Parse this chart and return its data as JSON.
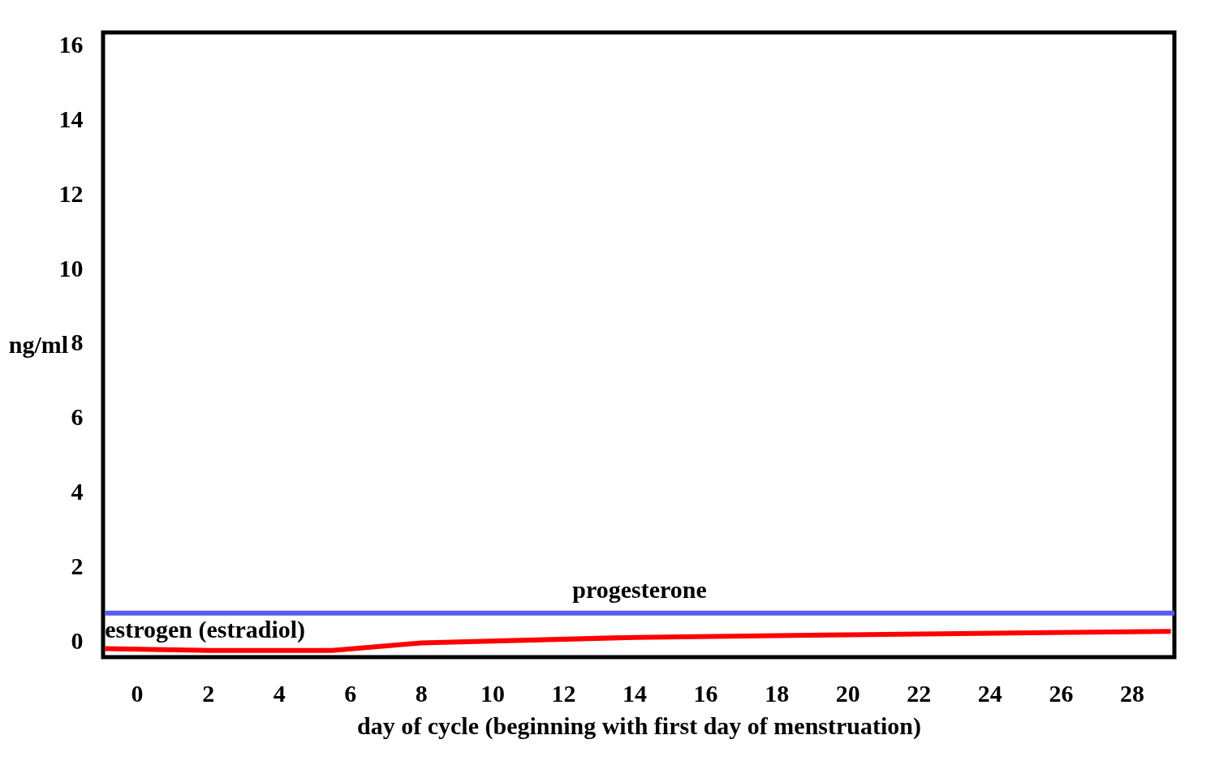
{
  "chart_data": {
    "type": "line",
    "xlabel": "day of cycle (beginning with first day of menstruation)",
    "ylabel": "ng/ml",
    "xlim": [
      -0.95,
      29.2
    ],
    "ylim": [
      -0.43,
      16.34
    ],
    "xticks": [
      0,
      2,
      4,
      6,
      8,
      10,
      12,
      14,
      16,
      18,
      20,
      22,
      24,
      26,
      28
    ],
    "yticks": [
      0,
      2,
      4,
      6,
      8,
      10,
      12,
      14,
      16
    ],
    "grid": false,
    "marker": "none",
    "line_style": "solid",
    "series": [
      {
        "name": "progesterone",
        "color": "#5a5af0",
        "x": [
          -0.9,
          29.2
        ],
        "values": [
          0.75,
          0.75
        ]
      },
      {
        "name": "estrogen (estradiol)",
        "color": "#ff0000",
        "x": [
          -0.9,
          2,
          5.5,
          8,
          14,
          20,
          29.1
        ],
        "values": [
          -0.2,
          -0.25,
          -0.25,
          -0.05,
          0.1,
          0.17,
          0.26
        ]
      }
    ]
  }
}
